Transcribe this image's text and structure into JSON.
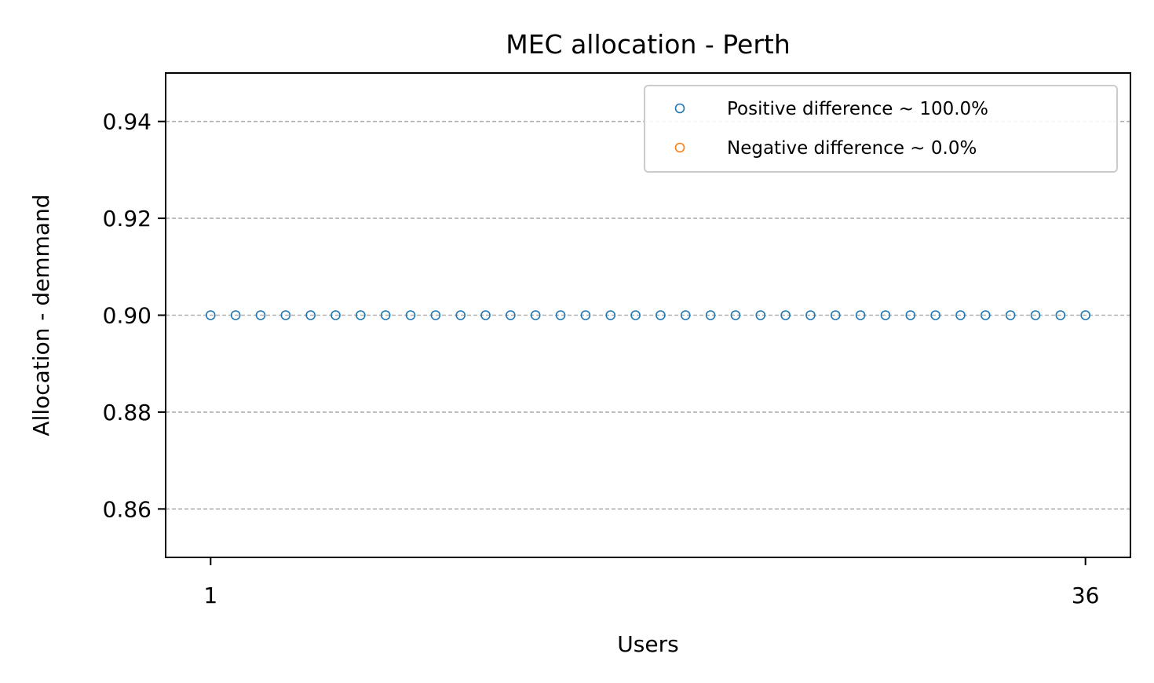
{
  "chart_data": {
    "type": "scatter",
    "title": "MEC allocation - Perth",
    "xlabel": "Users",
    "ylabel": "Allocation - demmand",
    "xlim": [
      -0.8,
      37.8
    ],
    "ylim": [
      0.85,
      0.95
    ],
    "xticks": [
      1,
      36
    ],
    "xtick_labels": [
      "1",
      "36"
    ],
    "yticks": [
      0.86,
      0.88,
      0.9,
      0.92,
      0.94
    ],
    "ytick_labels": [
      "0.86",
      "0.88",
      "0.90",
      "0.92",
      "0.94"
    ],
    "grid": "y-dashed",
    "legend_position": "top-right",
    "series": [
      {
        "name": "Positive difference ~ 100.0%",
        "color": "#1f77b4",
        "marker": "hollow-circle",
        "x": [
          1,
          2,
          3,
          4,
          5,
          6,
          7,
          8,
          9,
          10,
          11,
          12,
          13,
          14,
          15,
          16,
          17,
          18,
          19,
          20,
          21,
          22,
          23,
          24,
          25,
          26,
          27,
          28,
          29,
          30,
          31,
          32,
          33,
          34,
          35,
          36
        ],
        "y": [
          0.9,
          0.9,
          0.9,
          0.9,
          0.9,
          0.9,
          0.9,
          0.9,
          0.9,
          0.9,
          0.9,
          0.9,
          0.9,
          0.9,
          0.9,
          0.9,
          0.9,
          0.9,
          0.9,
          0.9,
          0.9,
          0.9,
          0.9,
          0.9,
          0.9,
          0.9,
          0.9,
          0.9,
          0.9,
          0.9,
          0.9,
          0.9,
          0.9,
          0.9,
          0.9,
          0.9
        ]
      },
      {
        "name": "Negative difference ~ 0.0%",
        "color": "#ff7f0e",
        "marker": "hollow-circle",
        "x": [],
        "y": []
      }
    ]
  }
}
